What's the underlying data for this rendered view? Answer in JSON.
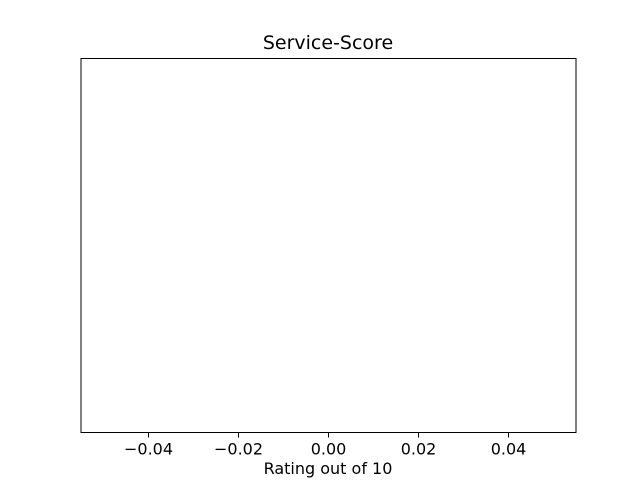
{
  "chart_data": {
    "type": "bar",
    "title": "Service-Score",
    "xlabel": "Rating out of 10",
    "ylabel": "",
    "xlim": [
      -0.055,
      0.055
    ],
    "x_ticks": [
      -0.04,
      -0.02,
      0.0,
      0.02,
      0.04
    ],
    "x_tick_labels": [
      "−0.04",
      "−0.02",
      "0.00",
      "0.02",
      "0.04"
    ],
    "y_ticks": [],
    "categories": [],
    "values": [],
    "grid": false,
    "legend": "none"
  }
}
